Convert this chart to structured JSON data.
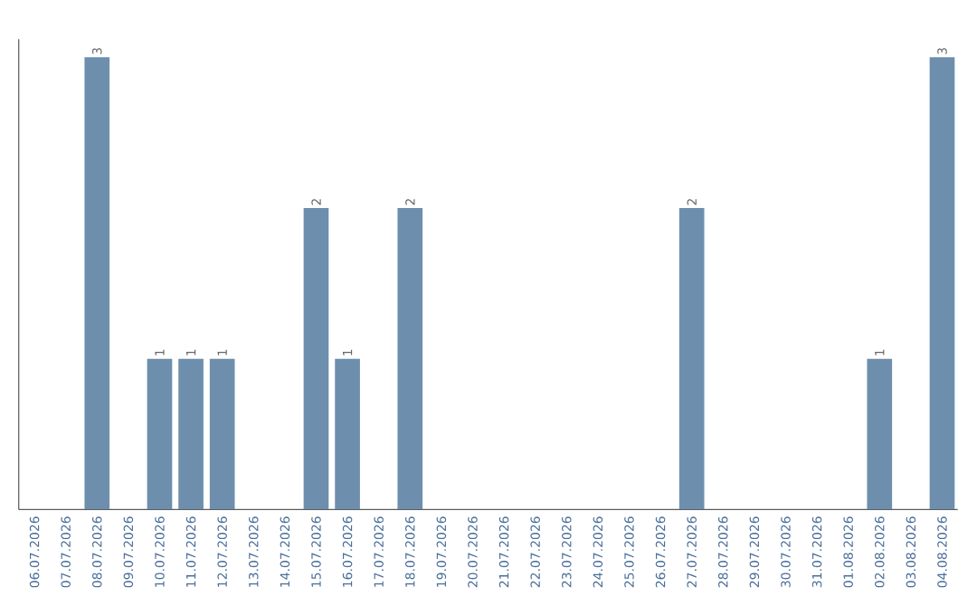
{
  "chart_data": {
    "type": "bar",
    "categories": [
      "06.07.2026",
      "07.07.2026",
      "08.07.2026",
      "09.07.2026",
      "10.07.2026",
      "11.07.2026",
      "12.07.2026",
      "13.07.2026",
      "14.07.2026",
      "15.07.2026",
      "16.07.2026",
      "17.07.2026",
      "18.07.2026",
      "19.07.2026",
      "20.07.2026",
      "21.07.2026",
      "22.07.2026",
      "23.07.2026",
      "24.07.2026",
      "25.07.2026",
      "26.07.2026",
      "27.07.2026",
      "28.07.2026",
      "29.07.2026",
      "30.07.2026",
      "31.07.2026",
      "01.08.2026",
      "02.08.2026",
      "03.08.2026",
      "04.08.2026"
    ],
    "values": [
      0,
      0,
      3,
      0,
      1,
      1,
      1,
      0,
      0,
      2,
      1,
      0,
      2,
      0,
      0,
      0,
      0,
      0,
      0,
      0,
      0,
      2,
      0,
      0,
      0,
      0,
      0,
      1,
      0,
      3
    ],
    "value_labels": [
      null,
      null,
      "3",
      null,
      "1",
      "1",
      "1",
      null,
      null,
      "2",
      "1",
      null,
      "2",
      null,
      null,
      null,
      null,
      null,
      null,
      null,
      null,
      "2",
      null,
      null,
      null,
      null,
      null,
      "1",
      null,
      "3"
    ],
    "color": "#6d8fad",
    "grid": false
  }
}
